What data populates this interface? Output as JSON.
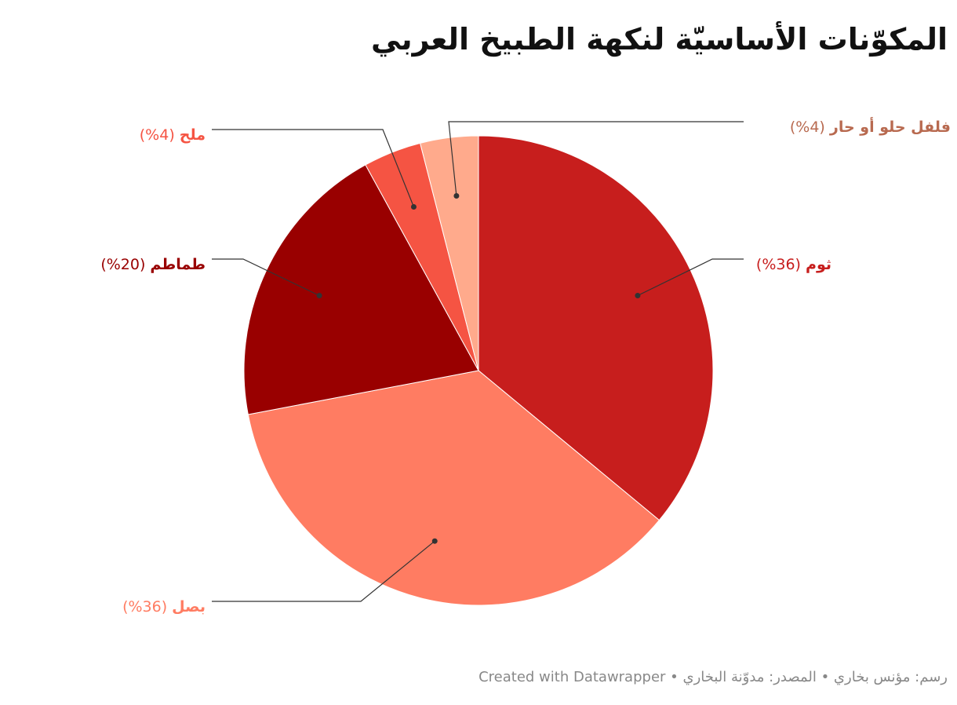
{
  "chart_data": {
    "type": "pie",
    "title": "المكوّنات الأساسيّة لنكهة الطبيخ العربي",
    "categories": [
      "ثوم",
      "بصل",
      "طماطم",
      "ملح",
      "فلفل حلو أو حار"
    ],
    "values": [
      36,
      36,
      20,
      4,
      4
    ],
    "value_labels": [
      "(%36)",
      "(%36)",
      "(%20)",
      "(%4)",
      "(%4)"
    ],
    "colors": [
      "#c71e1d",
      "#ff7c62",
      "#990000",
      "#f55443",
      "#ffaa8c"
    ],
    "footer": "رسم: مؤنس بخاري • المصدر: مدوّنة البخاري • Created with Datawrapper"
  }
}
